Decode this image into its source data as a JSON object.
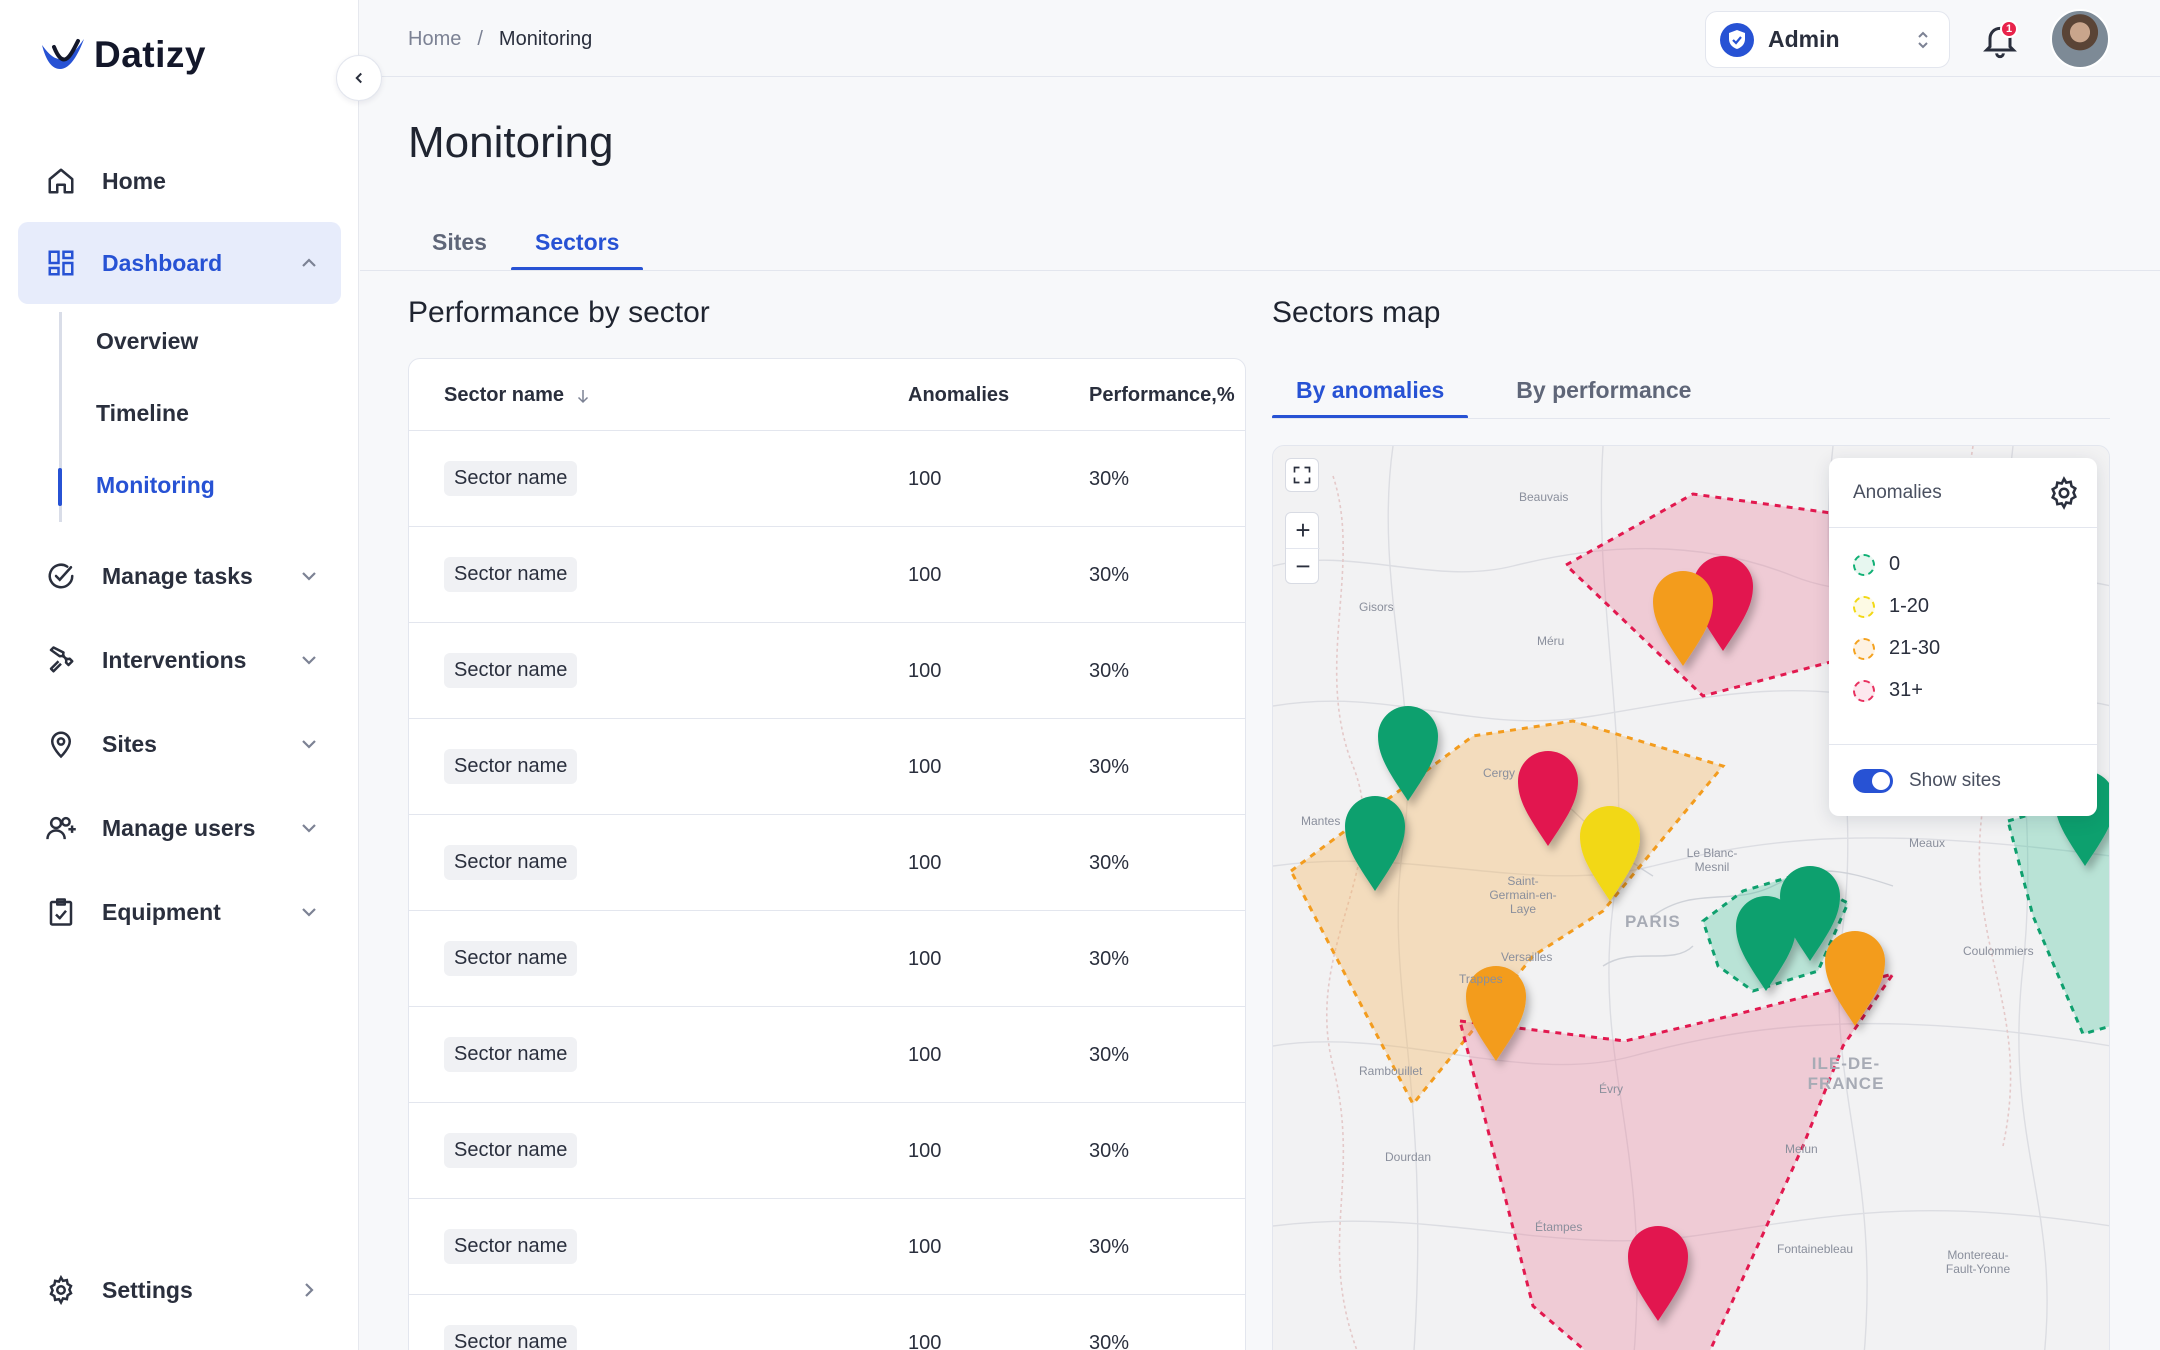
{
  "app": {
    "name": "Datizy",
    "brand_color": "#2752d4"
  },
  "sidebar": {
    "items": [
      {
        "label": "Home",
        "icon": "home-icon"
      },
      {
        "label": "Dashboard",
        "icon": "dashboard-icon",
        "active": true,
        "expanded": true,
        "children": [
          {
            "label": "Overview"
          },
          {
            "label": "Timeline"
          },
          {
            "label": "Monitoring",
            "active": true
          }
        ]
      },
      {
        "label": "Manage tasks",
        "icon": "check-circle-icon"
      },
      {
        "label": "Interventions",
        "icon": "wrench-icon"
      },
      {
        "label": "Sites",
        "icon": "map-pin-icon"
      },
      {
        "label": "Manage users",
        "icon": "user-plus-icon"
      },
      {
        "label": "Equipment",
        "icon": "clipboard-icon"
      }
    ],
    "settings_label": "Settings"
  },
  "header": {
    "breadcrumb": [
      "Home",
      "Monitoring"
    ],
    "role": "Admin",
    "notifications_count": "1"
  },
  "page": {
    "title": "Monitoring",
    "tabs": [
      {
        "label": "Sites",
        "active": false
      },
      {
        "label": "Sectors",
        "active": true
      }
    ]
  },
  "performance": {
    "title": "Performance by sector",
    "columns": [
      "Sector name",
      "Anomalies",
      "Performance,%"
    ],
    "rows": [
      {
        "name": "Sector name",
        "anomalies": "100",
        "performance": "30%"
      },
      {
        "name": "Sector name",
        "anomalies": "100",
        "performance": "30%"
      },
      {
        "name": "Sector name",
        "anomalies": "100",
        "performance": "30%"
      },
      {
        "name": "Sector name",
        "anomalies": "100",
        "performance": "30%"
      },
      {
        "name": "Sector name",
        "anomalies": "100",
        "performance": "30%"
      },
      {
        "name": "Sector name",
        "anomalies": "100",
        "performance": "30%"
      },
      {
        "name": "Sector name",
        "anomalies": "100",
        "performance": "30%"
      },
      {
        "name": "Sector name",
        "anomalies": "100",
        "performance": "30%"
      },
      {
        "name": "Sector name",
        "anomalies": "100",
        "performance": "30%"
      },
      {
        "name": "Sector name",
        "anomalies": "100",
        "performance": "30%"
      }
    ]
  },
  "sectors_map": {
    "title": "Sectors map",
    "tabs": [
      {
        "label": "By anomalies",
        "active": true
      },
      {
        "label": "By performance",
        "active": false
      }
    ],
    "place_labels": [
      "Beauvais",
      "Gisors",
      "Méru",
      "Cergy",
      "Mantes",
      "Saint-Germain-en-Laye",
      "Le Blanc-Mesnil",
      "PARIS",
      "Meaux",
      "Versailles",
      "Coulommiers",
      "Trappes",
      "Rambouillet",
      "ILE-DE-FRANCE",
      "Évry",
      "Dourdan",
      "Melun",
      "Étampes",
      "Fontainebleau",
      "Montereau-Fault-Yonne"
    ],
    "legend": {
      "title": "Anomalies",
      "items": [
        {
          "label": "0",
          "color": "#10b075"
        },
        {
          "label": "1-20",
          "color": "#f2d814"
        },
        {
          "label": "21-30",
          "color": "#f4a21f"
        },
        {
          "label": "31+",
          "color": "#e8305f"
        }
      ],
      "show_sites_label": "Show sites",
      "show_sites": true
    },
    "colors": {
      "green": "#0fa06e",
      "yellow": "#f2d814",
      "orange": "#f39c1e",
      "red": "#e2194f"
    }
  }
}
